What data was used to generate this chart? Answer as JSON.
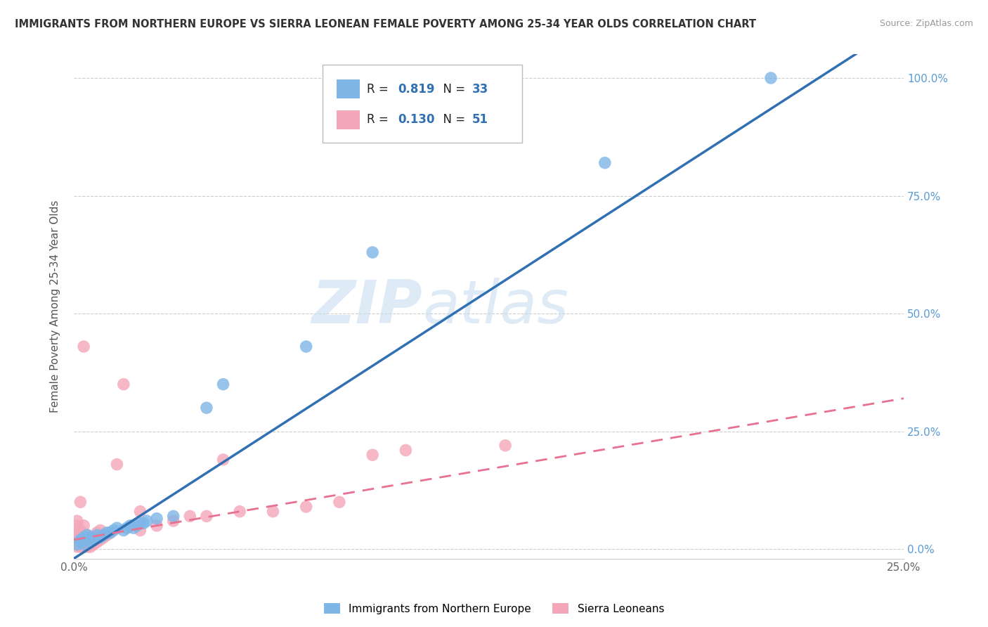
{
  "title": "IMMIGRANTS FROM NORTHERN EUROPE VS SIERRA LEONEAN FEMALE POVERTY AMONG 25-34 YEAR OLDS CORRELATION CHART",
  "source": "Source: ZipAtlas.com",
  "ylabel": "Female Poverty Among 25-34 Year Olds",
  "xlim": [
    0.0,
    0.25
  ],
  "ylim": [
    -0.02,
    1.05
  ],
  "ytick_right_labels": [
    "0.0%",
    "25.0%",
    "50.0%",
    "75.0%",
    "100.0%"
  ],
  "ytick_right_vals": [
    0.0,
    0.25,
    0.5,
    0.75,
    1.0
  ],
  "watermark_zip": "ZIP",
  "watermark_atlas": "atlas",
  "legend_label1": "Immigrants from Northern Europe",
  "legend_label2": "Sierra Leoneans",
  "blue_color": "#7EB6E8",
  "pink_color": "#F4A7B9",
  "blue_line_color": "#3070B3",
  "pink_line_color": "#E87090",
  "background_color": "#FFFFFF",
  "grid_color": "#CCCCCC",
  "blue_scatter": [
    [
      0.001,
      0.01
    ],
    [
      0.002,
      0.015
    ],
    [
      0.002,
      0.02
    ],
    [
      0.003,
      0.01
    ],
    [
      0.003,
      0.025
    ],
    [
      0.004,
      0.02
    ],
    [
      0.004,
      0.03
    ],
    [
      0.005,
      0.015
    ],
    [
      0.005,
      0.025
    ],
    [
      0.006,
      0.02
    ],
    [
      0.007,
      0.03
    ],
    [
      0.008,
      0.025
    ],
    [
      0.009,
      0.03
    ],
    [
      0.01,
      0.035
    ],
    [
      0.011,
      0.035
    ],
    [
      0.012,
      0.04
    ],
    [
      0.013,
      0.045
    ],
    [
      0.015,
      0.04
    ],
    [
      0.016,
      0.045
    ],
    [
      0.017,
      0.05
    ],
    [
      0.018,
      0.045
    ],
    [
      0.019,
      0.05
    ],
    [
      0.02,
      0.055
    ],
    [
      0.021,
      0.055
    ],
    [
      0.022,
      0.06
    ],
    [
      0.025,
      0.065
    ],
    [
      0.03,
      0.07
    ],
    [
      0.04,
      0.3
    ],
    [
      0.045,
      0.35
    ],
    [
      0.07,
      0.43
    ],
    [
      0.09,
      0.63
    ],
    [
      0.16,
      0.82
    ],
    [
      0.21,
      1.0
    ]
  ],
  "pink_scatter": [
    [
      0.001,
      0.005
    ],
    [
      0.001,
      0.01
    ],
    [
      0.001,
      0.02
    ],
    [
      0.001,
      0.03
    ],
    [
      0.001,
      0.04
    ],
    [
      0.001,
      0.05
    ],
    [
      0.001,
      0.06
    ],
    [
      0.002,
      0.005
    ],
    [
      0.002,
      0.01
    ],
    [
      0.002,
      0.02
    ],
    [
      0.002,
      0.03
    ],
    [
      0.002,
      0.04
    ],
    [
      0.002,
      0.1
    ],
    [
      0.003,
      0.005
    ],
    [
      0.003,
      0.01
    ],
    [
      0.003,
      0.02
    ],
    [
      0.003,
      0.03
    ],
    [
      0.003,
      0.05
    ],
    [
      0.003,
      0.43
    ],
    [
      0.004,
      0.005
    ],
    [
      0.004,
      0.01
    ],
    [
      0.004,
      0.02
    ],
    [
      0.004,
      0.03
    ],
    [
      0.005,
      0.005
    ],
    [
      0.005,
      0.01
    ],
    [
      0.005,
      0.02
    ],
    [
      0.006,
      0.01
    ],
    [
      0.006,
      0.025
    ],
    [
      0.007,
      0.015
    ],
    [
      0.007,
      0.035
    ],
    [
      0.008,
      0.02
    ],
    [
      0.008,
      0.04
    ],
    [
      0.009,
      0.025
    ],
    [
      0.01,
      0.03
    ],
    [
      0.011,
      0.035
    ],
    [
      0.013,
      0.18
    ],
    [
      0.015,
      0.35
    ],
    [
      0.02,
      0.04
    ],
    [
      0.02,
      0.08
    ],
    [
      0.025,
      0.05
    ],
    [
      0.03,
      0.06
    ],
    [
      0.035,
      0.07
    ],
    [
      0.04,
      0.07
    ],
    [
      0.045,
      0.19
    ],
    [
      0.05,
      0.08
    ],
    [
      0.06,
      0.08
    ],
    [
      0.07,
      0.09
    ],
    [
      0.08,
      0.1
    ],
    [
      0.09,
      0.2
    ],
    [
      0.1,
      0.21
    ],
    [
      0.13,
      0.22
    ]
  ]
}
